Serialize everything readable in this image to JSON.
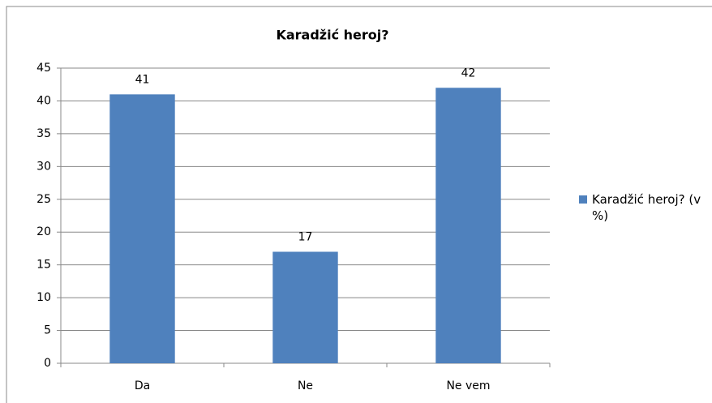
{
  "chart_data": {
    "type": "bar",
    "title": "Karadžić heroj?",
    "categories": [
      "Da",
      "Ne",
      "Ne vem"
    ],
    "series": [
      {
        "name": "Karadžić heroj? (v %)",
        "color": "#4f81bd",
        "values": [
          41,
          17,
          42
        ]
      }
    ],
    "ylim": [
      0,
      45
    ],
    "yticks": [
      0,
      5,
      10,
      15,
      20,
      25,
      30,
      35,
      40,
      45
    ],
    "grid": true,
    "legend": "right"
  }
}
